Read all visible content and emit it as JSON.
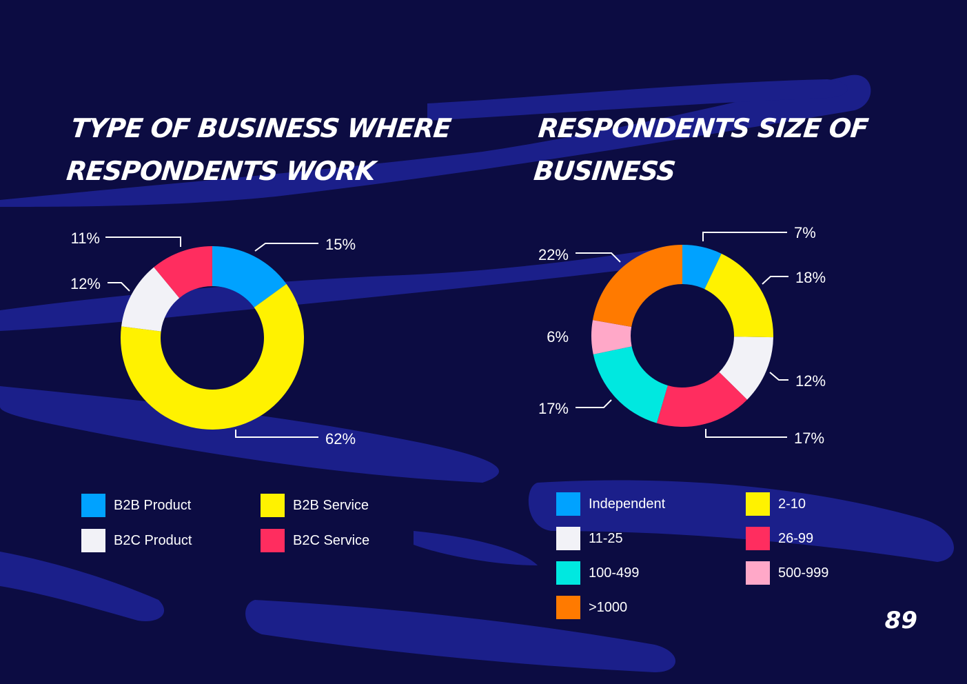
{
  "page_number": "89",
  "colors": {
    "background": "#0c0c42",
    "brush": "#1b1f8a"
  },
  "chart_data": [
    {
      "type": "pie",
      "title": "Type of business where respondents work",
      "donut": true,
      "series": [
        {
          "name": "B2B Product",
          "value": 15,
          "label": "15%",
          "color": "#00a2ff"
        },
        {
          "name": "B2B Service",
          "value": 62,
          "label": "62%",
          "color": "#fff200"
        },
        {
          "name": "B2C Product",
          "value": 12,
          "label": "12%",
          "color": "#f2f2f7"
        },
        {
          "name": "B2C Service",
          "value": 11,
          "label": "11%",
          "color": "#ff2d5f"
        }
      ]
    },
    {
      "type": "pie",
      "title": "Respondents size of business",
      "donut": true,
      "series": [
        {
          "name": "Independent",
          "value": 7,
          "label": "7%",
          "color": "#00a2ff"
        },
        {
          "name": "2-10",
          "value": 18,
          "label": "18%",
          "color": "#fff200"
        },
        {
          "name": "11-25",
          "value": 12,
          "label": "12%",
          "color": "#f2f2f7"
        },
        {
          "name": "26-99",
          "value": 17,
          "label": "17%",
          "color": "#ff2d5f"
        },
        {
          "name": "100-499",
          "value": 17,
          "label": "17%",
          "color": "#00e8e0"
        },
        {
          "name": "500-999",
          "value": 6,
          "label": "6%",
          "color": "#ffa8c8"
        },
        {
          "name": ">1000",
          "value": 22,
          "label": "22%",
          "color": "#ff7a00"
        }
      ]
    }
  ]
}
